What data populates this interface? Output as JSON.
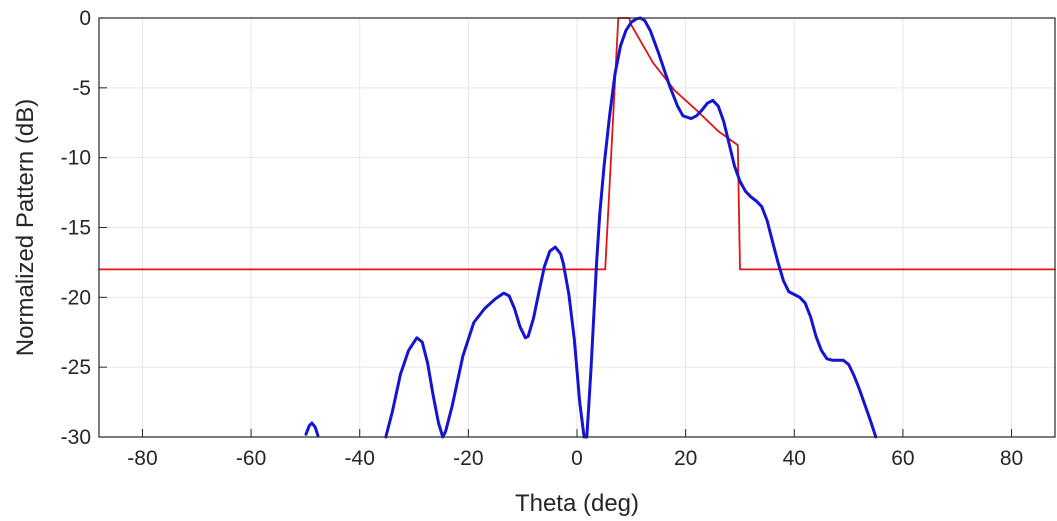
{
  "chart_data": {
    "type": "line",
    "title": "",
    "xlabel": "Theta (deg)",
    "ylabel": "Normalized Pattern (dB)",
    "xlim": [
      -88,
      88
    ],
    "ylim": [
      -30,
      0
    ],
    "grid": true,
    "x_ticks": [
      -80,
      -60,
      -40,
      -20,
      0,
      20,
      40,
      60,
      80
    ],
    "y_ticks": [
      0,
      -5,
      -10,
      -15,
      -20,
      -25,
      -30
    ],
    "x_tick_labels": [
      "-80",
      "-60",
      "-40",
      "-20",
      "0",
      "20",
      "40",
      "60",
      "80"
    ],
    "y_tick_labels": [
      "0",
      "-5",
      "-10",
      "-15",
      "-20",
      "-25",
      "-30"
    ],
    "series": [
      {
        "color": "#e01414",
        "linewidth": 1.8,
        "x": [
          -88,
          5.2,
          7.6,
          9.6,
          10,
          14,
          18,
          22,
          26,
          29.6,
          30,
          88
        ],
        "y": [
          -18,
          -18,
          0,
          0,
          -0.5,
          -3.2,
          -5.2,
          -6.6,
          -8.1,
          -9.1,
          -18,
          -18
        ]
      },
      {
        "color": "#1414d2",
        "linewidth": 3,
        "x": [
          -49.9,
          -49.3,
          -48.8,
          -48.2,
          -47.7
        ],
        "y": [
          -29.8,
          -29.2,
          -29.0,
          -29.3,
          -29.9
        ]
      },
      {
        "color": "#1414d2",
        "linewidth": 3,
        "x": [
          -35.2,
          -34,
          -32.5,
          -31,
          -29.5,
          -28.5,
          -27.5,
          -26.5,
          -25.5,
          -24.7,
          -24.2,
          -23,
          -21,
          -19,
          -17,
          -15,
          -13.5,
          -12.5,
          -11.5,
          -10.5,
          -9.5,
          -9,
          -8,
          -7,
          -6,
          -5,
          -4,
          -3,
          -2.5,
          -1.5,
          -0.5,
          0.5,
          1.3,
          1.8,
          2.2,
          2.6,
          3.2,
          3.6,
          4.2,
          5,
          6,
          7,
          8,
          9,
          10,
          11,
          11.7,
          12.5,
          13.5,
          15,
          17,
          18.5,
          19.5,
          21,
          22,
          23,
          24,
          25,
          26,
          27,
          28,
          29,
          30,
          31,
          32,
          33,
          34,
          35,
          36,
          37,
          38,
          39,
          40,
          41,
          42,
          43,
          44,
          45,
          46,
          47,
          48,
          49,
          50,
          51,
          52,
          53,
          54,
          55
        ],
        "y": [
          -30,
          -28.2,
          -25.5,
          -23.8,
          -22.9,
          -23.2,
          -24.7,
          -27.0,
          -29.0,
          -30,
          -29.6,
          -27.8,
          -24.2,
          -21.8,
          -20.8,
          -20.1,
          -19.7,
          -19.9,
          -20.8,
          -22.1,
          -22.9,
          -22.8,
          -21.5,
          -19.6,
          -17.8,
          -16.7,
          -16.4,
          -16.9,
          -17.6,
          -19.8,
          -23.0,
          -27.5,
          -30,
          -30,
          -27.5,
          -25.0,
          -20.5,
          -17.5,
          -14.0,
          -10.5,
          -7.0,
          -4.0,
          -2.0,
          -0.9,
          -0.3,
          -0.05,
          0,
          -0.2,
          -0.9,
          -2.5,
          -4.8,
          -6.3,
          -7.0,
          -7.2,
          -7.0,
          -6.6,
          -6.1,
          -5.9,
          -6.3,
          -7.4,
          -9.0,
          -10.6,
          -11.7,
          -12.4,
          -12.8,
          -13.1,
          -13.5,
          -14.5,
          -16.0,
          -17.5,
          -18.8,
          -19.6,
          -19.8,
          -20.0,
          -20.4,
          -21.4,
          -22.8,
          -23.8,
          -24.4,
          -24.5,
          -24.5,
          -24.5,
          -24.8,
          -25.6,
          -26.6,
          -27.7,
          -28.8,
          -30
        ]
      }
    ]
  }
}
